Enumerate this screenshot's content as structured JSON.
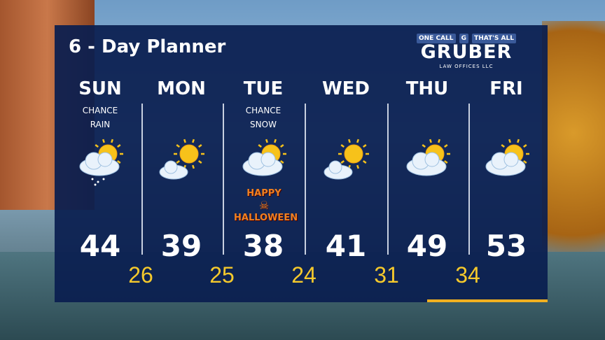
{
  "title": "6 - Day Planner",
  "sponsor": {
    "tagline_left": "ONE CALL",
    "tagline_right": "THAT'S ALL",
    "name": "GRUBER",
    "subtitle": "LAW OFFICES LLC"
  },
  "days": [
    {
      "day": "SUN",
      "condition": [
        "CHANCE",
        "RAIN"
      ],
      "icon": "partly-sunny-rain-icon",
      "high": "44"
    },
    {
      "day": "MON",
      "condition": [],
      "icon": "mostly-sunny-icon",
      "high": "39"
    },
    {
      "day": "TUE",
      "condition": [
        "CHANCE",
        "SNOW"
      ],
      "icon": "partly-sunny-snow-icon",
      "high": "38"
    },
    {
      "day": "WED",
      "condition": [],
      "icon": "mostly-sunny-icon",
      "high": "41"
    },
    {
      "day": "THU",
      "condition": [],
      "icon": "partly-cloudy-icon",
      "high": "49"
    },
    {
      "day": "FRI",
      "condition": [],
      "icon": "partly-cloudy-icon",
      "high": "53"
    }
  ],
  "lows": [
    "26",
    "25",
    "24",
    "31",
    "34"
  ],
  "halloween": [
    "HAPPY",
    "HALLOWEEN"
  ],
  "colors": {
    "panel": "#0a1e50",
    "low": "#f5c92c"
  }
}
